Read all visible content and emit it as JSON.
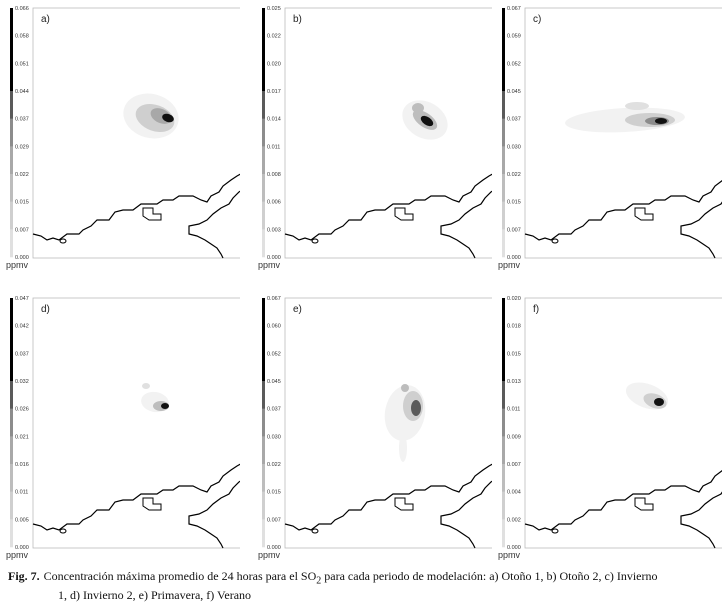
{
  "chart_data": [
    {
      "type": "heatmap",
      "panel_label": "a)",
      "unit": "ppmv",
      "colorbar_ticks": [
        "0.066",
        "0.058",
        "0.051",
        "0.044",
        "0.037",
        "0.029",
        "0.022",
        "0.015",
        "0.007",
        "0.000"
      ],
      "colorbar_range": [
        0.0,
        0.066
      ]
    },
    {
      "type": "heatmap",
      "panel_label": "b)",
      "unit": "ppmv",
      "colorbar_ticks": [
        "0.025",
        "0.022",
        "0.020",
        "0.017",
        "0.014",
        "0.011",
        "0.008",
        "0.006",
        "0.003",
        "0.000"
      ],
      "colorbar_range": [
        0.0,
        0.025
      ]
    },
    {
      "type": "heatmap",
      "panel_label": "c)",
      "unit": "ppmv",
      "colorbar_ticks": [
        "0.067",
        "0.059",
        "0.052",
        "0.045",
        "0.037",
        "0.030",
        "0.022",
        "0.015",
        "0.007",
        "0.000"
      ],
      "colorbar_range": [
        0.0,
        0.067
      ]
    },
    {
      "type": "heatmap",
      "panel_label": "d)",
      "unit": "ppmv",
      "colorbar_ticks": [
        "0.047",
        "0.042",
        "0.037",
        "0.032",
        "0.026",
        "0.021",
        "0.016",
        "0.011",
        "0.005",
        "0.000"
      ],
      "colorbar_range": [
        0.0,
        0.047
      ]
    },
    {
      "type": "heatmap",
      "panel_label": "e)",
      "unit": "ppmv",
      "colorbar_ticks": [
        "0.067",
        "0.060",
        "0.052",
        "0.045",
        "0.037",
        "0.030",
        "0.022",
        "0.015",
        "0.007",
        "0.000"
      ],
      "colorbar_range": [
        0.0,
        0.067
      ]
    },
    {
      "type": "heatmap",
      "panel_label": "f)",
      "unit": "ppmv",
      "colorbar_ticks": [
        "0.020",
        "0.018",
        "0.015",
        "0.013",
        "0.011",
        "0.009",
        "0.007",
        "0.004",
        "0.002",
        "0.000"
      ],
      "colorbar_range": [
        0.0,
        0.02
      ]
    }
  ],
  "caption": {
    "fig_label": "Fig. 7.",
    "text_before_sub": "Concentración máxima promedio de 24 horas para el SO",
    "subscript": "2",
    "text_line1_rest": " para cada periodo de modelación: a) Otoño 1, b) Otoño 2, c) Invierno",
    "text_line2": "1, d) Invierno 2, e) Primavera, f) Verano"
  },
  "colors": {
    "levels": [
      "#f2f2f2",
      "#e0e0e0",
      "#cfcfcf",
      "#bdbdbd",
      "#a8a8a8",
      "#8c8c8c",
      "#5a5a5a",
      "#111111",
      "#000000"
    ]
  }
}
